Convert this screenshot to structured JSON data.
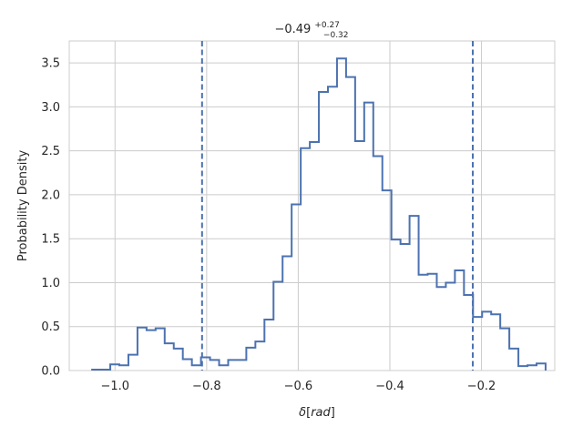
{
  "chart_data": {
    "type": "histogram",
    "title": {
      "value": "−0.49",
      "upper": "+0.27",
      "lower": "−0.32"
    },
    "xlabel": {
      "symbol": "δ",
      "bracket_open": "[",
      "unit": "rad",
      "bracket_close": "]"
    },
    "ylabel": "Probability Density",
    "xlim": [
      -1.1,
      -0.04
    ],
    "ylim": [
      0,
      3.75
    ],
    "x_ticks": [
      {
        "value": -1.0,
        "label": "−1.0"
      },
      {
        "value": -0.8,
        "label": "−0.8"
      },
      {
        "value": -0.6,
        "label": "−0.6"
      },
      {
        "value": -0.4,
        "label": "−0.4"
      },
      {
        "value": -0.2,
        "label": "−0.2"
      }
    ],
    "y_ticks": [
      {
        "value": 0.0,
        "label": "0.0"
      },
      {
        "value": 0.5,
        "label": "0.5"
      },
      {
        "value": 1.0,
        "label": "1.0"
      },
      {
        "value": 1.5,
        "label": "1.5"
      },
      {
        "value": 2.0,
        "label": "2.0"
      },
      {
        "value": 2.5,
        "label": "2.5"
      },
      {
        "value": 3.0,
        "label": "3.0"
      },
      {
        "value": 3.5,
        "label": "3.5"
      }
    ],
    "grid": true,
    "color": "#4c72b0",
    "bin_start": -1.05,
    "bin_width": 0.0198,
    "densities": [
      0.01,
      0.01,
      0.07,
      0.06,
      0.18,
      0.49,
      0.46,
      0.48,
      0.31,
      0.25,
      0.13,
      0.06,
      0.15,
      0.12,
      0.06,
      0.12,
      0.12,
      0.26,
      0.33,
      0.58,
      1.01,
      1.3,
      1.89,
      2.53,
      2.6,
      3.17,
      3.23,
      3.55,
      3.34,
      2.61,
      3.05,
      2.44,
      2.05,
      1.49,
      1.44,
      1.76,
      1.09,
      1.1,
      0.95,
      1.0,
      1.14,
      0.86,
      0.61,
      0.67,
      0.64,
      0.48,
      0.25,
      0.05,
      0.06,
      0.08
    ],
    "vlines": [
      -0.81,
      -0.219
    ]
  }
}
